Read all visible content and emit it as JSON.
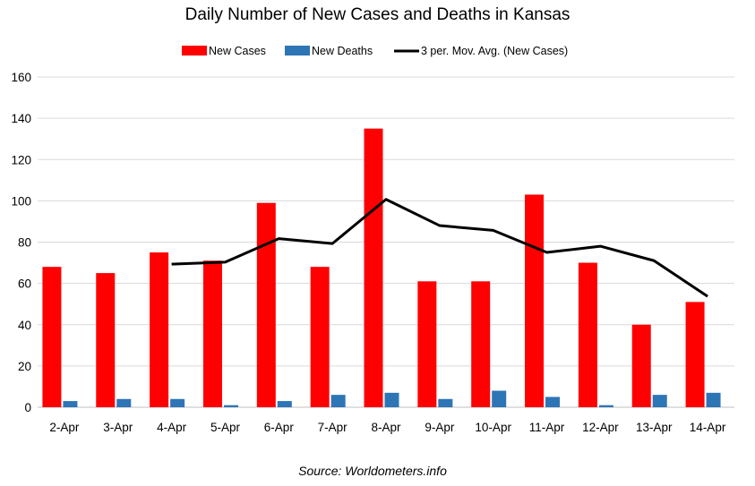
{
  "chart_data": {
    "type": "bar",
    "title": "Daily Number of New Cases and Deaths in Kansas",
    "categories": [
      "2-Apr",
      "3-Apr",
      "4-Apr",
      "5-Apr",
      "6-Apr",
      "7-Apr",
      "8-Apr",
      "9-Apr",
      "10-Apr",
      "11-Apr",
      "12-Apr",
      "13-Apr",
      "14-Apr"
    ],
    "series": [
      {
        "name": "New Cases",
        "type": "bar",
        "color": "#ff0000",
        "values": [
          68,
          65,
          75,
          71,
          99,
          68,
          135,
          61,
          61,
          103,
          70,
          40,
          51
        ]
      },
      {
        "name": "New Deaths",
        "type": "bar",
        "color": "#2e75b6",
        "values": [
          3,
          4,
          4,
          1,
          3,
          6,
          7,
          4,
          8,
          5,
          1,
          6,
          7
        ]
      },
      {
        "name": "3 per. Mov. Avg. (New Cases)",
        "type": "line",
        "color": "#000000",
        "values": [
          null,
          null,
          69.3,
          70.3,
          81.7,
          79.3,
          100.7,
          88,
          85.7,
          75,
          78,
          71,
          53.7
        ]
      }
    ],
    "ylim": [
      0,
      160
    ],
    "yticks": [
      0,
      20,
      40,
      60,
      80,
      100,
      120,
      140,
      160
    ],
    "grid": true,
    "legend_position": "top",
    "source": "Source: Worldometers.info"
  }
}
